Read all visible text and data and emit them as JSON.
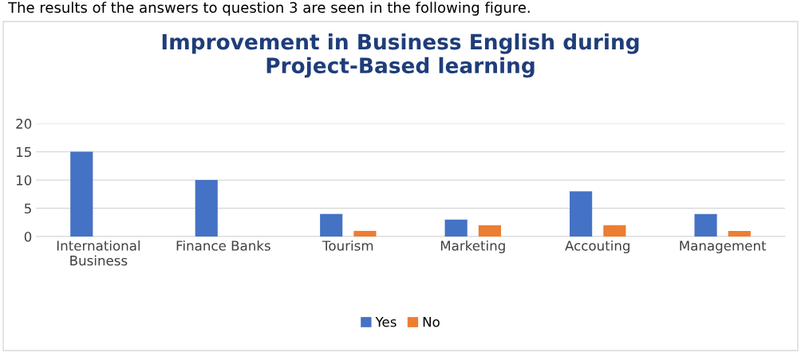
{
  "chart_data": {
    "type": "bar",
    "title": "Improvement in Business English during Project-Based learning",
    "annotations": [
      "The results of the answers to question 3 are seen in the following figure."
    ],
    "categories": [
      "International Business",
      "Finance Banks",
      "Tourism",
      "Marketing",
      "Accouting",
      "Management"
    ],
    "series": [
      {
        "name": "Yes",
        "color": "#4472c4",
        "values": [
          15,
          10,
          4,
          3,
          8,
          4
        ]
      },
      {
        "name": "No",
        "color": "#ed7d31",
        "values": [
          0,
          0,
          1,
          2,
          2,
          1
        ]
      }
    ],
    "ylim": [
      0,
      20
    ],
    "yticks": [
      0,
      5,
      10,
      15,
      20
    ],
    "grid": "y",
    "legend": "bottom"
  }
}
